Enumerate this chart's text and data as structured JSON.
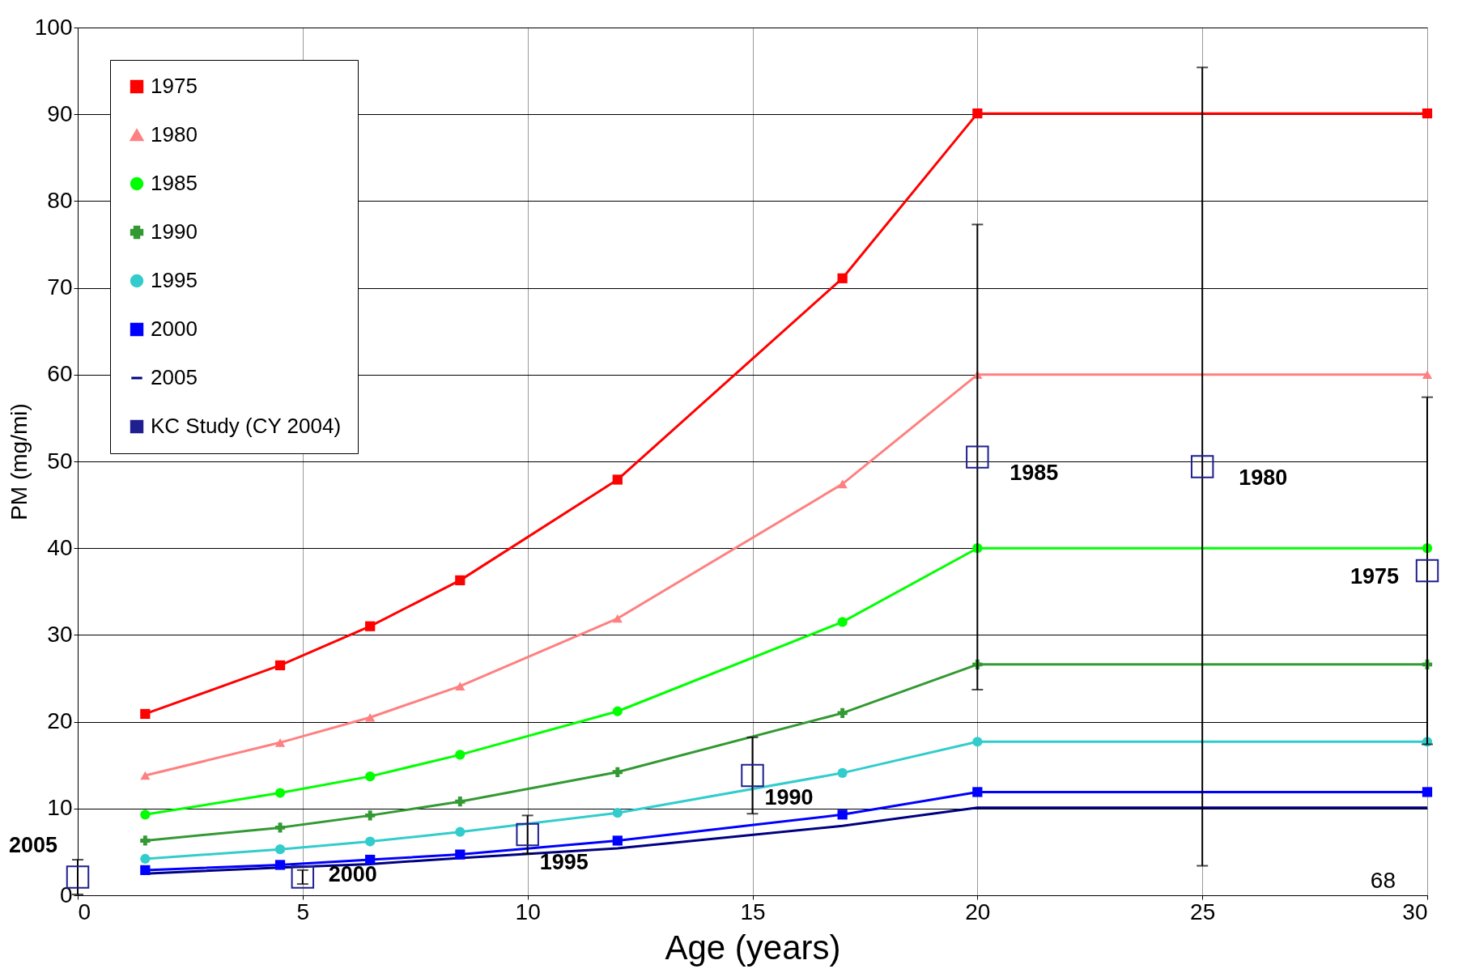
{
  "chart_data": {
    "type": "line",
    "xlabel": "Age (years)",
    "ylabel": "PM (mg/mi)",
    "xlim": [
      0,
      30
    ],
    "xticks": [
      0,
      5,
      10,
      15,
      20,
      25,
      30
    ],
    "ylim": [
      0,
      100
    ],
    "yticks": [
      0,
      10,
      20,
      30,
      40,
      50,
      60,
      70,
      80,
      90,
      100
    ],
    "grid": true,
    "legend": "top left",
    "line_style": "solid",
    "x": [
      1.5,
      4.5,
      6.5,
      8.5,
      12,
      17,
      20,
      30
    ],
    "series": [
      {
        "name": "1975",
        "color": "#ff0000",
        "marker": "square",
        "values": [
          20.9,
          26.5,
          31,
          36.3,
          47.9,
          71.1,
          90.1,
          90.1
        ]
      },
      {
        "name": "1980",
        "color": "#ff8080",
        "marker": "triangle",
        "values": [
          13.8,
          17.6,
          20.5,
          24.1,
          31.9,
          47.4,
          60,
          60
        ]
      },
      {
        "name": "1985",
        "color": "#00ff00",
        "marker": "circle",
        "values": [
          9.3,
          11.8,
          13.7,
          16.2,
          21.2,
          31.5,
          40,
          40
        ]
      },
      {
        "name": "1990",
        "color": "#339933",
        "marker": "cross",
        "values": [
          6.3,
          7.8,
          9.2,
          10.8,
          14.2,
          21,
          26.6,
          26.6
        ]
      },
      {
        "name": "1995",
        "color": "#33cccc",
        "marker": "circle",
        "values": [
          4.2,
          5.3,
          6.2,
          7.3,
          9.5,
          14.1,
          17.7,
          17.7
        ]
      },
      {
        "name": "2000",
        "color": "#0000ff",
        "marker": "square",
        "values": [
          2.9,
          3.5,
          4.1,
          4.7,
          6.3,
          9.3,
          11.9,
          11.9
        ]
      },
      {
        "name": "2005",
        "color": "#000080",
        "marker": "none",
        "values": [
          2.5,
          3.2,
          3.6,
          4.3,
          5.4,
          8,
          10.1,
          10.1
        ]
      },
      {
        "name": "KC Study (CY 2004)",
        "color": "#1f1f8f",
        "type": "scatter",
        "marker": "square",
        "x": [
          0,
          5,
          10,
          15,
          20,
          25,
          30
        ],
        "values": [
          2.1,
          2.1,
          7,
          13.8,
          50.5,
          49.4,
          37.4
        ],
        "errors": [
          2.0,
          0.8,
          2.2,
          4.4,
          26.8,
          46,
          20
        ]
      }
    ],
    "annotations": [
      {
        "text": "2005",
        "x": 0,
        "y": 2.1
      },
      {
        "text": "2000",
        "x": 5,
        "y": 2.1
      },
      {
        "text": "1995",
        "x": 10,
        "y": 7
      },
      {
        "text": "1990",
        "x": 15,
        "y": 13.8
      },
      {
        "text": "1985",
        "x": 20,
        "y": 50.5
      },
      {
        "text": "1980",
        "x": 25,
        "y": 49.4
      },
      {
        "text": "1975",
        "x": 30,
        "y": 37.4
      },
      "68"
    ]
  }
}
